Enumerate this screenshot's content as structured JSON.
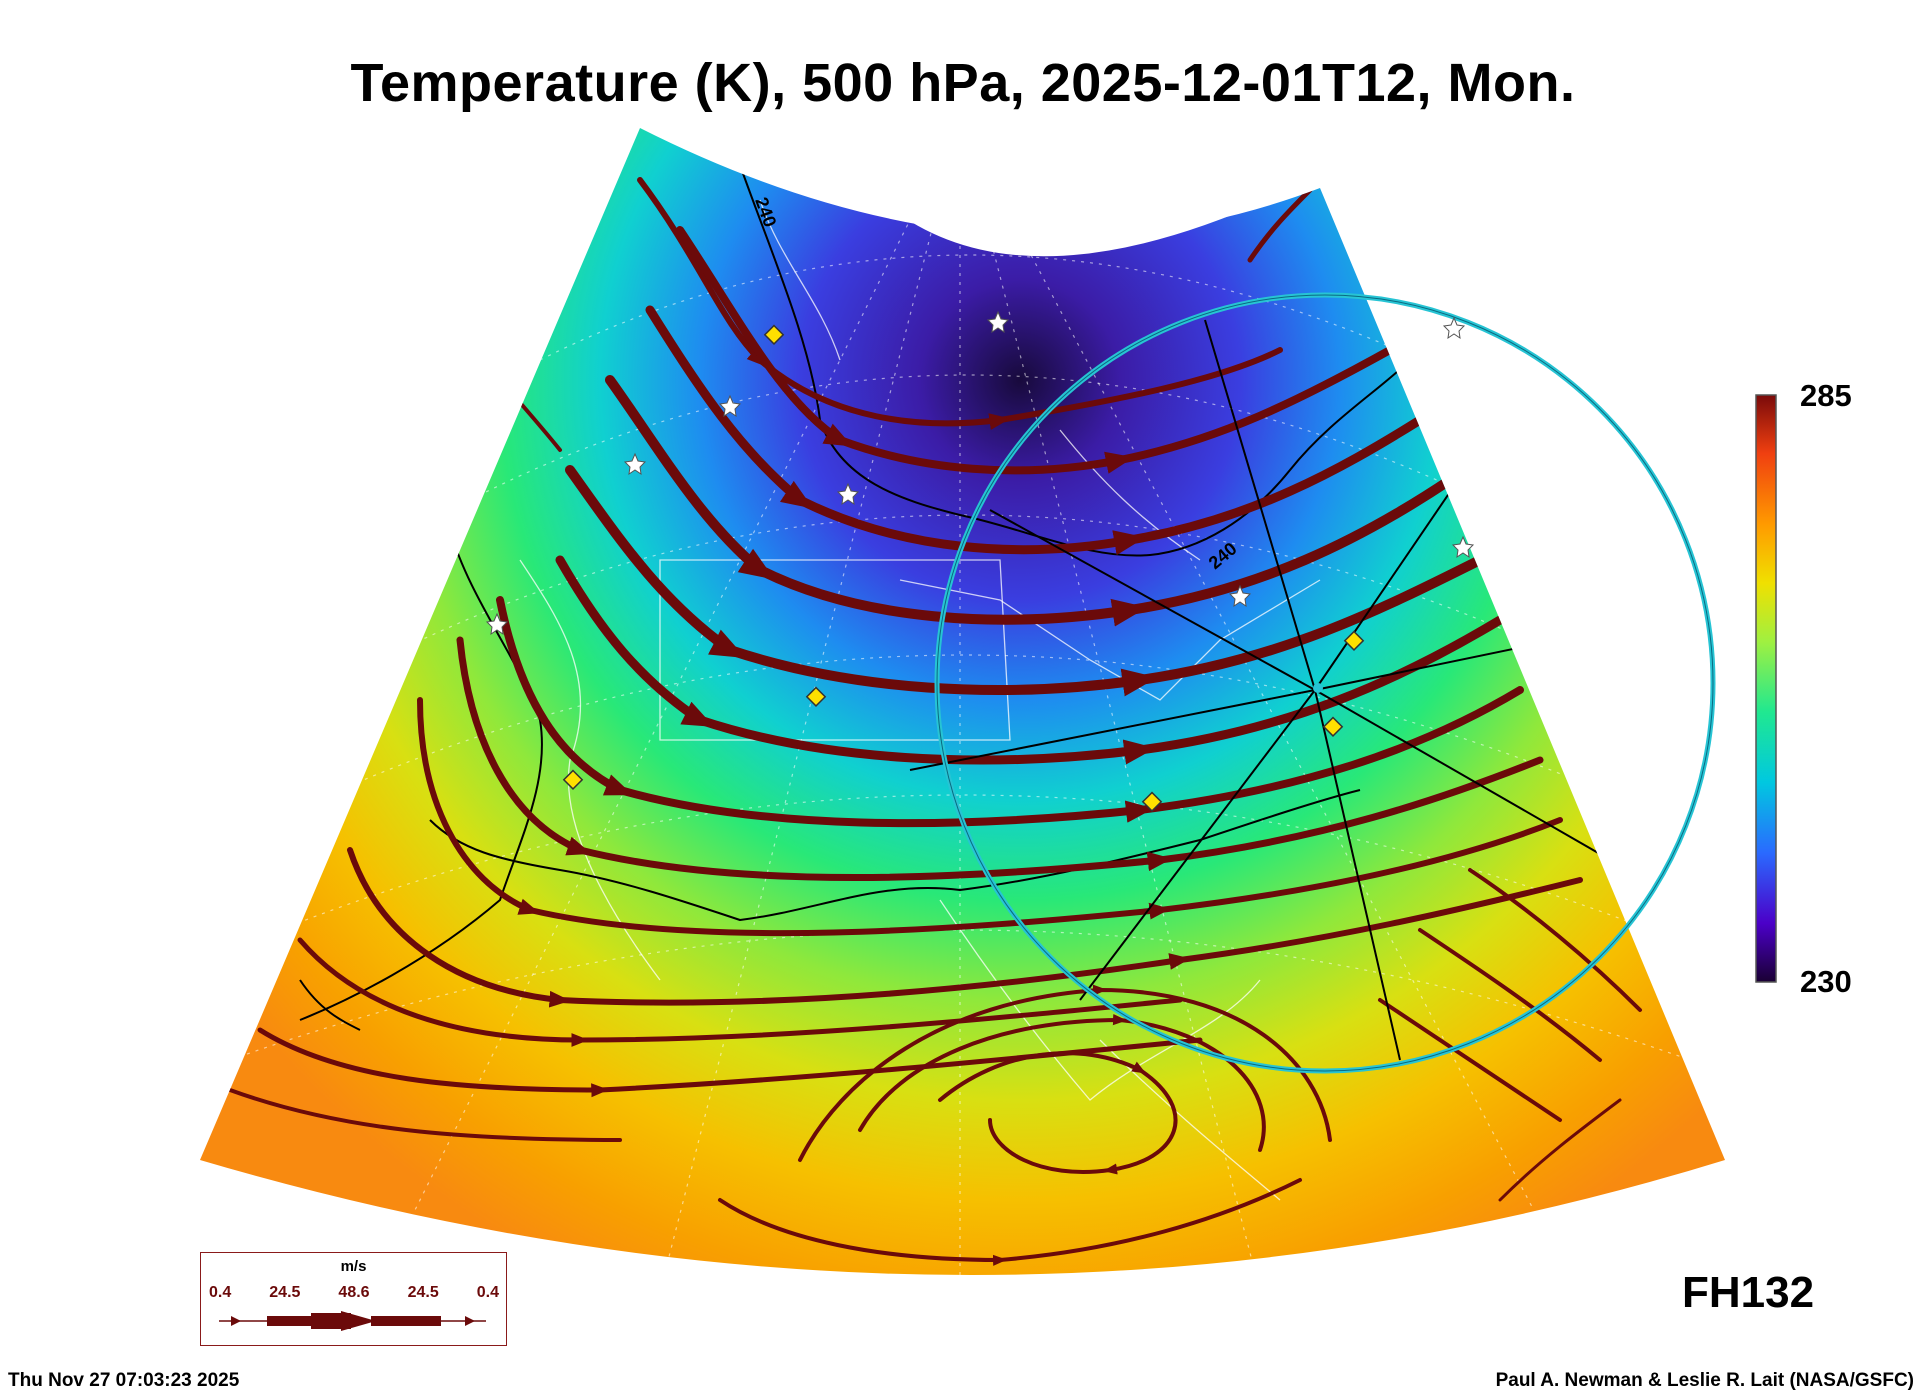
{
  "title": "Temperature (K), 500 hPa, 2025-12-01T12, Mon.",
  "colorbar": {
    "max_label": "285",
    "min_label": "230",
    "palette": [
      "#1a0033",
      "#4b00c8",
      "#2a6aff",
      "#00c8e0",
      "#20e890",
      "#a0f040",
      "#f0e000",
      "#ff9a00",
      "#f04010",
      "#7a0a0a"
    ]
  },
  "contours": {
    "label_1": "240",
    "label_2": "240"
  },
  "forecast_hour": "FH132",
  "wind_legend": {
    "units": "m/s",
    "values": [
      "0.4",
      "24.5",
      "48.6",
      "24.5",
      "0.4"
    ]
  },
  "footer": {
    "timestamp": "Thu Nov 27 07:03:23 2025",
    "credit": "Paul A. Newman & Leslie R. Lait (NASA/GSFC)"
  },
  "colors": {
    "streamline": "#6b0a0a",
    "ring": "#27c4d4",
    "marker_diamond": "#ffe000"
  }
}
